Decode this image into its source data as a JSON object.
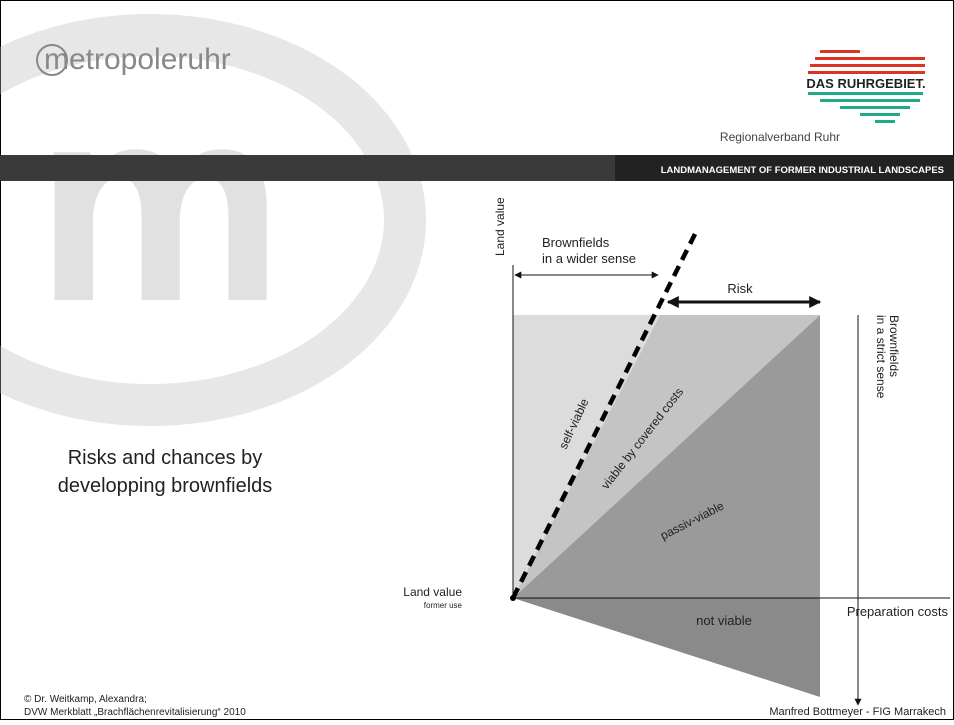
{
  "header": {
    "logo": "metropoleruhr",
    "brand": "DAS RUHRGEBIET.",
    "organisation": "Regionalverband Ruhr",
    "banner": "LANDMANAGEMENT OF FORMER INDUSTRIAL LANDSCAPES"
  },
  "slide_title": [
    "Risks and chances by",
    "developping brownfields"
  ],
  "diagram": {
    "y_axis": "Land value",
    "wider_sense": [
      "Brownfields",
      "in a wider sense"
    ],
    "risk": "Risk",
    "strict_sense": [
      "Brownfields",
      "in a strict sense"
    ],
    "regions": [
      "self-viable",
      "viable by covered costs",
      "passiv-viable",
      "not viable"
    ],
    "origin": [
      "Land value",
      "former use"
    ],
    "x_axis": "Preparation costs"
  },
  "credits": [
    "© Dr. Weitkamp, Alexandra;",
    "DVW Merkblatt „Brachflächenrevitalisierung“ 2010"
  ],
  "footer": "Manfred Bottmeyer - FIG Marrakech"
}
